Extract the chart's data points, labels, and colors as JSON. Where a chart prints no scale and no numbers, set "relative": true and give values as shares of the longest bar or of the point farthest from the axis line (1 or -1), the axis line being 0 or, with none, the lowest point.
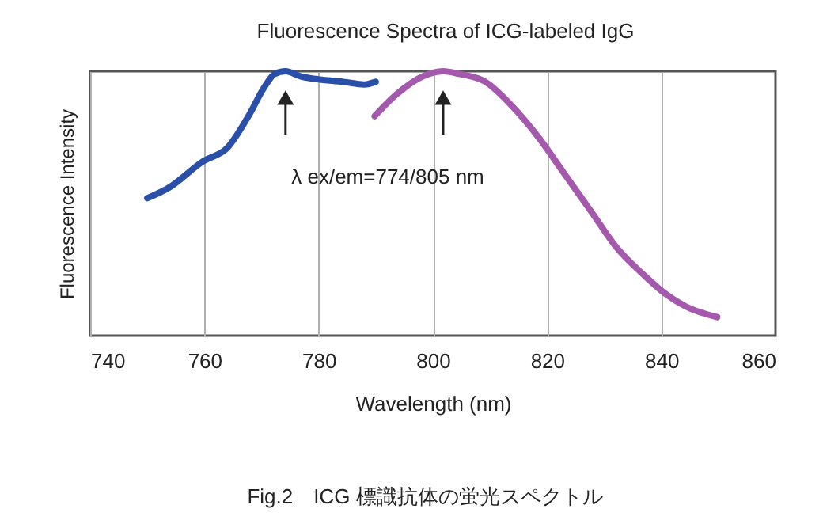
{
  "chart_data": {
    "type": "line",
    "title": "Fluorescence Spectra of ICG-labeled IgG",
    "xlabel": "Wavelength (nm)",
    "ylabel": "Fluorescence Intensity",
    "relative": true,
    "xlim": [
      740,
      860
    ],
    "xticks": [
      740,
      760,
      780,
      800,
      820,
      840,
      860
    ],
    "grid": "x",
    "tick_labels": "x",
    "line_style": "solid",
    "marker": "none",
    "annotations": [
      "λ ex/em=774/805 nm",
      "Fig.2　ICG 標識抗体の蛍光スペクトル"
    ],
    "series": [
      {
        "color": "#2a4fa8",
        "x": [
          750,
          753.8,
          759.8,
          764,
          767.7,
          770.5,
          772.3,
          774.2,
          776.9,
          779.7,
          784.3,
          788,
          790
        ],
        "values": [
          0.52,
          0.56,
          0.66,
          0.71,
          0.83,
          0.94,
          0.99,
          1.0,
          0.98,
          0.97,
          0.96,
          0.95,
          0.96
        ]
      },
      {
        "color": "#a459ad",
        "x": [
          789.8,
          793.5,
          798.2,
          801.8,
          804.6,
          809.2,
          813.8,
          818.5,
          823.1,
          827.7,
          832.3,
          836.9,
          840.6,
          844.3,
          849.8
        ],
        "values": [
          0.83,
          0.91,
          0.98,
          1.0,
          0.99,
          0.96,
          0.87,
          0.75,
          0.61,
          0.47,
          0.33,
          0.23,
          0.16,
          0.11,
          0.07
        ]
      }
    ]
  }
}
